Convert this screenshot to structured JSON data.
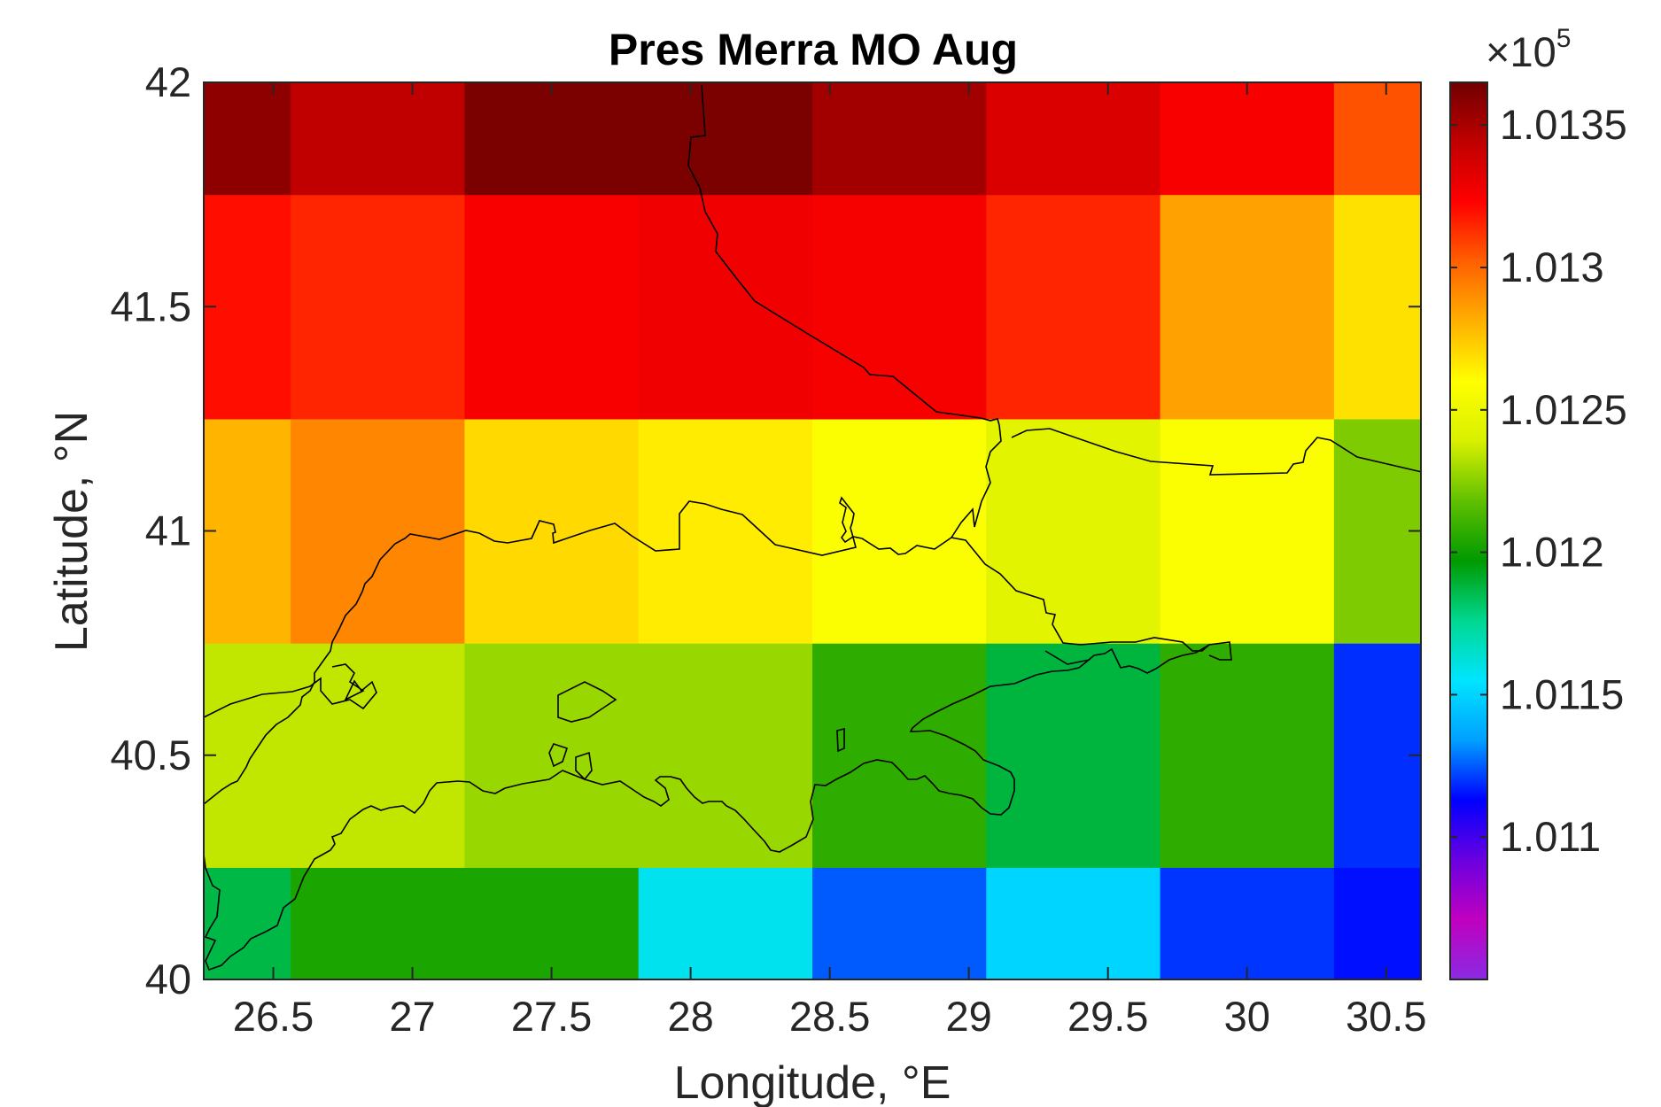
{
  "chart_data": {
    "type": "heatmap",
    "title": "Pres Merra MO Aug",
    "xlabel": "Longitude, °E",
    "ylabel": "Latitude, °N",
    "xlim": [
      26.25,
      30.625
    ],
    "ylim": [
      40,
      42
    ],
    "x_ticks": [
      "26.5",
      "27",
      "27.5",
      "28",
      "28.5",
      "29",
      "29.5",
      "30",
      "30.5"
    ],
    "y_ticks": [
      "40",
      "40.5",
      "41",
      "41.5",
      "42"
    ],
    "lon_edges": [
      26.25,
      26.5625,
      27.1875,
      27.8125,
      28.4375,
      29.0625,
      29.6875,
      30.3125,
      30.625
    ],
    "lat_edges": [
      40,
      40.25,
      40.75,
      41.25,
      41.75,
      42
    ],
    "values": [
      [
        101187,
        101203,
        101203,
        101158,
        101125,
        101150,
        101120,
        101115
      ],
      [
        101235,
        101235,
        101228,
        101228,
        101207,
        101188,
        101207,
        101119
      ],
      [
        101280,
        101292,
        101270,
        101265,
        101258,
        101245,
        101258,
        101223
      ],
      [
        101320,
        101315,
        101325,
        101328,
        101326,
        101315,
        101285,
        101268
      ],
      [
        101357,
        101344,
        101362,
        101362,
        101352,
        101335,
        101325,
        101305
      ]
    ],
    "colorbar": {
      "min": 101050,
      "max": 101365,
      "ticks": [
        "1.011",
        "1.0115",
        "1.012",
        "1.0125",
        "1.013",
        "1.0135"
      ],
      "multiplier_prefix": "×10",
      "multiplier_exp": "5"
    },
    "colormap": [
      "#8a2be2",
      "#c000c0",
      "#6a00e0",
      "#0000ff",
      "#00a0ff",
      "#00e5ff",
      "#00d890",
      "#009a00",
      "#60c000",
      "#d8f000",
      "#ffff00",
      "#ffb000",
      "#ff6000",
      "#ff0000",
      "#c00000",
      "#700000"
    ],
    "coastline_color": "#000000"
  }
}
